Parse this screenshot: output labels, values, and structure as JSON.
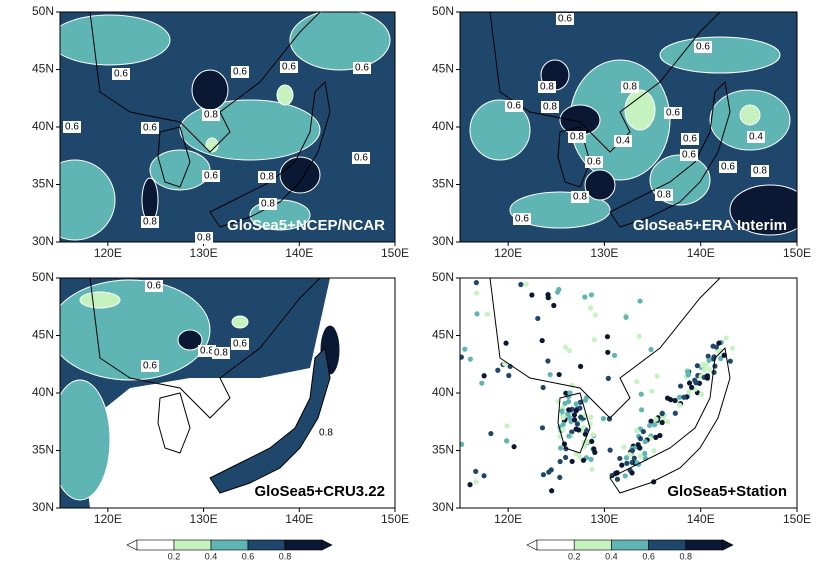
{
  "panels": [
    {
      "title": "GloSea5+NCEP/NCAR",
      "lat_labels": [
        "50N",
        "45N",
        "40N",
        "35N",
        "30N"
      ],
      "lon_labels": [
        "120E",
        "130E",
        "140E",
        "150E"
      ],
      "contour_labels": [
        "0.6",
        "0.6",
        "0.6",
        "0.6",
        "0.8",
        "0.6",
        "0.6",
        "0.6",
        "0.6",
        "0.8",
        "0.8",
        "0.8",
        "0.8"
      ]
    },
    {
      "title": "GloSea5+ERA Interim",
      "lat_labels": [
        "50N",
        "45N",
        "40N",
        "35N",
        "30N"
      ],
      "lon_labels": [
        "120E",
        "130E",
        "140E",
        "150E"
      ],
      "contour_labels": [
        "0.6",
        "0.6",
        "0.8",
        "0.8",
        "0.6",
        "0.8",
        "0.6",
        "0.8",
        "0.4",
        "0.6",
        "0.4",
        "0.6",
        "0.6",
        "0.6",
        "0.8",
        "0.8",
        "0.8",
        "0.6"
      ]
    },
    {
      "title": "GloSea5+CRU3.22",
      "lat_labels": [
        "50N",
        "45N",
        "40N",
        "35N",
        "30N"
      ],
      "lon_labels": [
        "120E",
        "130E",
        "140E",
        "150E"
      ],
      "contour_labels": [
        "0.6",
        "0.6",
        "0.8",
        "0.8",
        "0.6",
        "0.8"
      ]
    },
    {
      "title": "GloSea5+Station",
      "lat_labels": [
        "50N",
        "45N",
        "40N",
        "35N",
        "30N"
      ],
      "lon_labels": [
        "120E",
        "130E",
        "140E",
        "150E"
      ],
      "contour_labels": []
    }
  ],
  "colorbars": [
    {
      "ticks": [
        "0.2",
        "0.4",
        "0.6",
        "0.8"
      ]
    },
    {
      "ticks": [
        "0.2",
        "0.4",
        "0.6",
        "0.8"
      ]
    }
  ]
}
